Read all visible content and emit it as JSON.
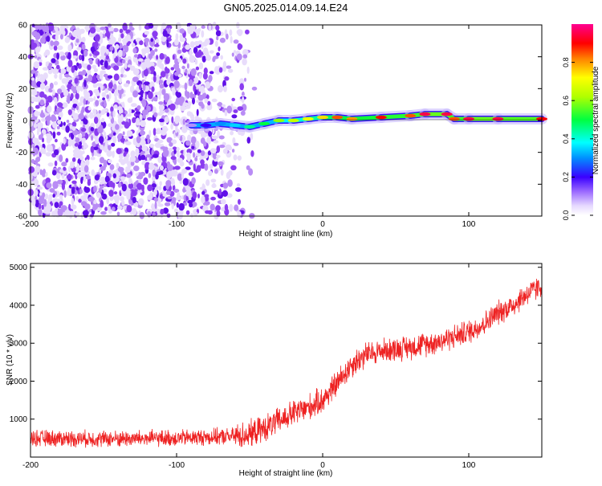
{
  "title": "GN05.2025.014.09.14.E24",
  "chart_data": [
    {
      "type": "heatmap",
      "xlabel": "Height of straight line (km)",
      "ylabel": "Frequency (Hz)",
      "xlim": [
        -200,
        150
      ],
      "ylim": [
        -60,
        60
      ],
      "xticks": [
        -200,
        -100,
        0,
        100
      ],
      "yticks": [
        -60,
        -40,
        -20,
        0,
        20,
        40,
        60
      ],
      "colorbar": {
        "label": "Normalized spectral amplitude",
        "range": [
          0,
          1
        ],
        "ticks": [
          "0.0",
          "0.2",
          "0.4",
          "0.6",
          "0.8"
        ]
      },
      "signal_track": {
        "x": [
          -90,
          -80,
          -70,
          -60,
          -50,
          -40,
          -30,
          -20,
          -10,
          0,
          10,
          20,
          40,
          60,
          70,
          85,
          90,
          100,
          120,
          150
        ],
        "frequency": [
          -3,
          -3,
          -2,
          -3,
          -4,
          -2,
          0,
          0,
          1,
          2,
          2,
          1,
          2,
          3,
          4,
          4,
          1,
          1,
          1,
          1
        ],
        "amplitude": [
          0.1,
          0.2,
          0.3,
          0.35,
          0.45,
          0.5,
          0.6,
          0.65,
          0.7,
          0.75,
          0.85,
          0.8,
          0.9,
          0.85,
          0.95,
          0.95,
          0.85,
          0.95,
          0.95,
          0.9
        ]
      },
      "noise_region_xlim": [
        -200,
        -50
      ]
    },
    {
      "type": "line",
      "xlabel": "Height of straight line (km)",
      "ylabel": "SNR (10 * v/v)",
      "xlim": [
        -200,
        150
      ],
      "ylim": [
        0,
        5100
      ],
      "xticks": [
        -200,
        -100,
        0,
        100
      ],
      "yticks": [
        1000,
        2000,
        3000,
        4000,
        5000
      ],
      "color": "#ee2222",
      "series": [
        {
          "x": [
            -200,
            -150,
            -100,
            -60,
            -50,
            -40,
            -30,
            -20,
            -10,
            0,
            10,
            20,
            30,
            40,
            60,
            80,
            100,
            110,
            120,
            130,
            140,
            150
          ],
          "y": [
            500,
            480,
            500,
            550,
            600,
            750,
            950,
            1150,
            1300,
            1500,
            1950,
            2450,
            2700,
            2800,
            2900,
            3050,
            3300,
            3500,
            3800,
            4000,
            4300,
            4500
          ]
        }
      ]
    }
  ]
}
